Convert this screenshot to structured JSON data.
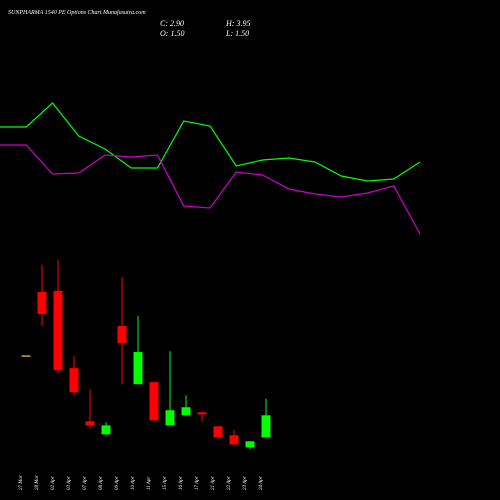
{
  "chart_data": [
    {
      "type": "candlestick",
      "title": "SUNPHARMA 1540 PE Options Chart Munafasutra.com",
      "stats": [
        "C: 2.90",
        "H: 3.95",
        "O: 1.50",
        "L: 1.50"
      ],
      "categories": [
        "27 Mar",
        "28 Mar",
        "02 Apr",
        "03 Apr",
        "07 Apr",
        "08 Apr",
        "09 Apr",
        "10 Apr",
        "11 Apr",
        "15 Apr",
        "16 Apr",
        "17 Apr",
        "21 Apr",
        "22 Apr",
        "23 Apr",
        "24 Apr"
      ],
      "open": [
        6.7,
        10.72,
        10.79,
        5.89,
        2.52,
        1.69,
        8.56,
        4.87,
        5.0,
        2.26,
        2.9,
        3.09,
        2.2,
        1.63,
        0.86,
        1.5
      ],
      "high": [
        6.7,
        12.44,
        12.76,
        6.65,
        4.55,
        2.45,
        11.68,
        9.2,
        5.0,
        6.97,
        4.17,
        3.09,
        2.2,
        1.95,
        1.25,
        3.95
      ],
      "low": [
        6.7,
        8.56,
        5.57,
        4.11,
        2.07,
        1.69,
        4.87,
        4.87,
        2.58,
        2.26,
        2.9,
        2.52,
        1.5,
        1.05,
        0.74,
        1.5
      ],
      "close": [
        6.7,
        9.32,
        5.76,
        4.36,
        2.26,
        2.26,
        7.48,
        6.91,
        2.58,
        3.22,
        3.41,
        2.96,
        1.5,
        1.05,
        1.25,
        2.9
      ],
      "up_color": "#00ff00",
      "down_color": "#ff0000",
      "flat_color": "#c8a040",
      "ylim": [
        0,
        13
      ]
    },
    {
      "type": "line",
      "series": [
        {
          "color": "#00ff00",
          "values": [
            123,
            123,
            147,
            114,
            101,
            82,
            82,
            129,
            124,
            84,
            90,
            92,
            88,
            74,
            69,
            71,
            88
          ]
        },
        {
          "color": "#cc00cc",
          "values": [
            105,
            105,
            76,
            77,
            95,
            93,
            95,
            44,
            42,
            78,
            75,
            61,
            56,
            53,
            57,
            64,
            16
          ]
        }
      ],
      "ylim": [
        0,
        160
      ]
    }
  ]
}
